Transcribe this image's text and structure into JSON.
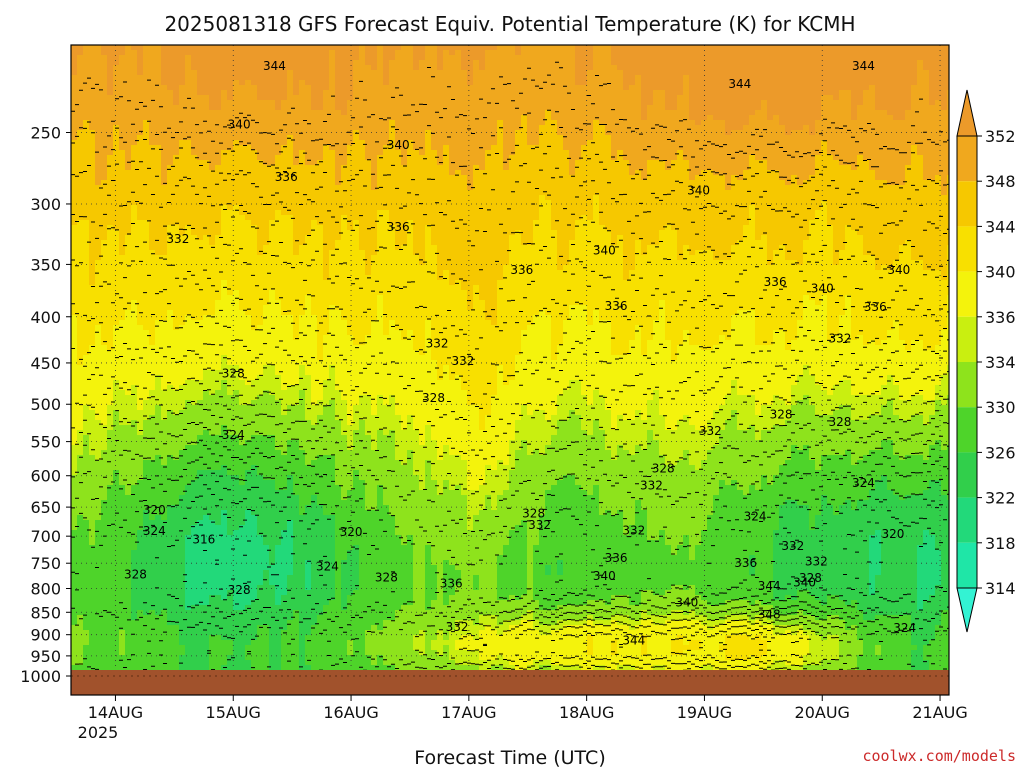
{
  "chart_data": {
    "type": "heatmap",
    "title": "2025081318 GFS Forecast Equiv. Potential Temperature (K) for KCMH",
    "xlabel": "Forecast Time (UTC)",
    "ylabel": "",
    "x_ticks": [
      "14AUG",
      "15AUG",
      "16AUG",
      "17AUG",
      "18AUG",
      "19AUG",
      "20AUG",
      "21AUG"
    ],
    "x_year": "2025",
    "x_range_days": [
      0.0,
      7.13
    ],
    "y_ticks": [
      "250",
      "300",
      "350",
      "400",
      "450",
      "500",
      "550",
      "600",
      "650",
      "700",
      "750",
      "800",
      "850",
      "900",
      "950",
      "1000"
    ],
    "y_log": true,
    "y_range_hpa": [
      200,
      1000
    ],
    "grid": true,
    "colorbar": {
      "levels": [
        314,
        318,
        322,
        326,
        330,
        334,
        336,
        340,
        344,
        348,
        352
      ],
      "tick_labels": [
        "314",
        "318",
        "322",
        "326",
        "330",
        "334",
        "336",
        "340",
        "344",
        "348",
        "352"
      ],
      "colors": [
        "#33f3d3",
        "#1fe6a7",
        "#22d97a",
        "#31cf4b",
        "#4ed42a",
        "#8ee31c",
        "#c9ef10",
        "#f4f30c",
        "#f8e000",
        "#f6c800",
        "#f0a81e",
        "#ec9a2a"
      ]
    },
    "contour_labels": [
      {
        "text": "344",
        "day": 1.6,
        "p": 211
      },
      {
        "text": "344",
        "day": 5.55,
        "p": 221
      },
      {
        "text": "344",
        "day": 6.6,
        "p": 211
      },
      {
        "text": "340",
        "day": 1.3,
        "p": 245
      },
      {
        "text": "340",
        "day": 2.65,
        "p": 258
      },
      {
        "text": "340",
        "day": 5.2,
        "p": 290
      },
      {
        "text": "340",
        "day": 4.4,
        "p": 338
      },
      {
        "text": "340",
        "day": 6.25,
        "p": 372
      },
      {
        "text": "340",
        "day": 6.9,
        "p": 355
      },
      {
        "text": "336",
        "day": 1.7,
        "p": 280
      },
      {
        "text": "336",
        "day": 2.65,
        "p": 318
      },
      {
        "text": "336",
        "day": 3.7,
        "p": 355
      },
      {
        "text": "336",
        "day": 4.5,
        "p": 389
      },
      {
        "text": "336",
        "day": 5.85,
        "p": 366
      },
      {
        "text": "336",
        "day": 6.7,
        "p": 390
      },
      {
        "text": "336",
        "day": 4.5,
        "p": 740
      },
      {
        "text": "336",
        "day": 3.1,
        "p": 790
      },
      {
        "text": "336",
        "day": 5.6,
        "p": 750
      },
      {
        "text": "332",
        "day": 0.78,
        "p": 328
      },
      {
        "text": "332",
        "day": 2.98,
        "p": 428
      },
      {
        "text": "332",
        "day": 3.2,
        "p": 448
      },
      {
        "text": "332",
        "day": 6.4,
        "p": 423
      },
      {
        "text": "332",
        "day": 5.3,
        "p": 535
      },
      {
        "text": "332",
        "day": 4.8,
        "p": 615
      },
      {
        "text": "332",
        "day": 3.85,
        "p": 680
      },
      {
        "text": "332",
        "day": 4.65,
        "p": 690
      },
      {
        "text": "332",
        "day": 6.0,
        "p": 718
      },
      {
        "text": "332",
        "day": 6.2,
        "p": 747
      },
      {
        "text": "332",
        "day": 3.15,
        "p": 882
      },
      {
        "text": "328",
        "day": 1.25,
        "p": 462
      },
      {
        "text": "328",
        "day": 2.95,
        "p": 492
      },
      {
        "text": "328",
        "day": 5.9,
        "p": 513
      },
      {
        "text": "328",
        "day": 6.4,
        "p": 523
      },
      {
        "text": "328",
        "day": 4.9,
        "p": 589
      },
      {
        "text": "328",
        "day": 3.8,
        "p": 661
      },
      {
        "text": "328",
        "day": 0.42,
        "p": 772
      },
      {
        "text": "328",
        "day": 1.3,
        "p": 803
      },
      {
        "text": "328",
        "day": 2.55,
        "p": 778
      },
      {
        "text": "328",
        "day": 6.15,
        "p": 779
      },
      {
        "text": "324",
        "day": 1.25,
        "p": 541
      },
      {
        "text": "324",
        "day": 5.68,
        "p": 666
      },
      {
        "text": "324",
        "day": 6.6,
        "p": 611
      },
      {
        "text": "324",
        "day": 0.58,
        "p": 691
      },
      {
        "text": "324",
        "day": 2.05,
        "p": 756
      },
      {
        "text": "324",
        "day": 6.95,
        "p": 885
      },
      {
        "text": "320",
        "day": 0.58,
        "p": 655
      },
      {
        "text": "320",
        "day": 2.25,
        "p": 693
      },
      {
        "text": "320",
        "day": 6.85,
        "p": 696
      },
      {
        "text": "316",
        "day": 1.0,
        "p": 706
      },
      {
        "text": "340",
        "day": 4.4,
        "p": 775
      },
      {
        "text": "340",
        "day": 5.1,
        "p": 829
      },
      {
        "text": "340",
        "day": 6.1,
        "p": 788
      },
      {
        "text": "344",
        "day": 4.65,
        "p": 914
      },
      {
        "text": "344",
        "day": 5.8,
        "p": 795
      },
      {
        "text": "348",
        "day": 5.8,
        "p": 855
      }
    ]
  },
  "credit": "coolwx.com/models"
}
